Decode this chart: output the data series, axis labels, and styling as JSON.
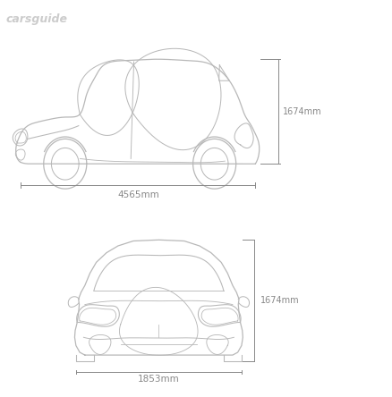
{
  "title": "carsguide",
  "bg_color": "#ffffff",
  "line_color": "#b8b8b8",
  "dim_color": "#888888",
  "title_color": "#cccccc",
  "height_label": "1674mm",
  "width_label": "1853mm",
  "length_label": "4565mm",
  "lw": 0.9,
  "dim_fontsize": 7.0,
  "title_fontsize": 9.0
}
